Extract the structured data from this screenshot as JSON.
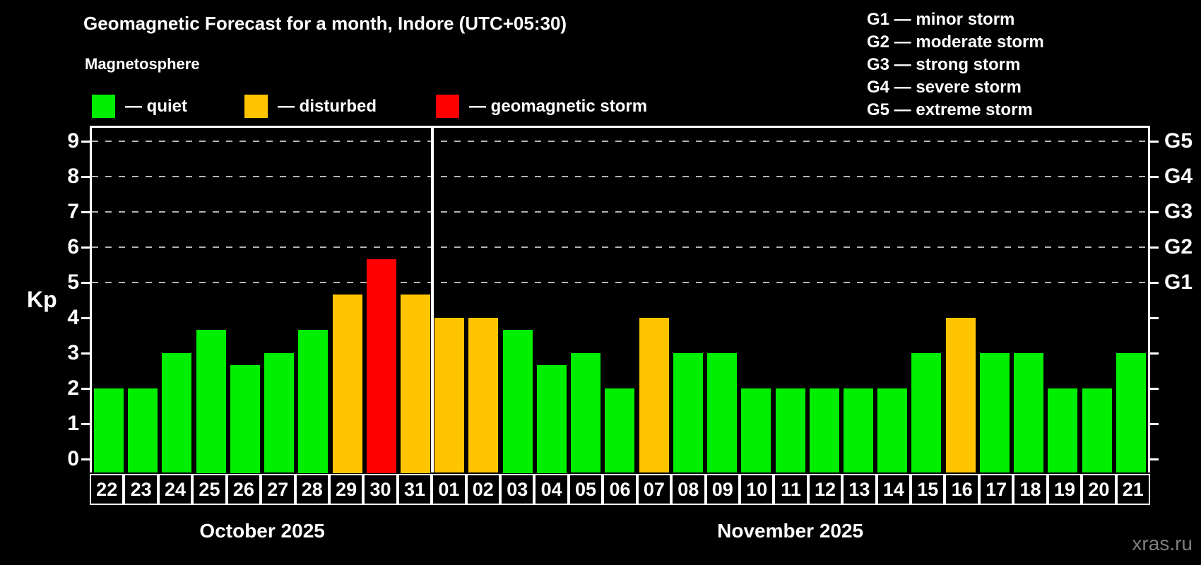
{
  "header": {
    "title": "Geomagnetic Forecast for a month, Indore (UTC+05:30)",
    "subtitle": "Magnetosphere"
  },
  "legend": {
    "items": [
      {
        "key": "quiet",
        "label": "— quiet",
        "color": "#00ee00"
      },
      {
        "key": "disturbed",
        "label": "— disturbed",
        "color": "#ffc400"
      },
      {
        "key": "storm",
        "label": "— geomagnetic storm",
        "color": "#ff0000"
      }
    ]
  },
  "storm_scale_legend": [
    "G1 — minor storm",
    "G2 — moderate storm",
    "G3 — strong storm",
    "G4 — severe storm",
    "G5 — extreme storm"
  ],
  "watermark": "xras.ru",
  "chart_data": {
    "type": "bar",
    "title": "Geomagnetic Forecast for a month, Indore (UTC+05:30)",
    "ylabel": "Kp",
    "ylim": [
      0,
      9.4
    ],
    "yticks": [
      0,
      1,
      2,
      3,
      4,
      5,
      6,
      7,
      8,
      9
    ],
    "grid": "dashed horizontal lines at Kp 5-9 only",
    "gridlines_at_kp": [
      5,
      6,
      7,
      8,
      9
    ],
    "right_axis_labels": [
      {
        "kp": 5,
        "label": "G1"
      },
      {
        "kp": 6,
        "label": "G2"
      },
      {
        "kp": 7,
        "label": "G3"
      },
      {
        "kp": 8,
        "label": "G4"
      },
      {
        "kp": 9,
        "label": "G5"
      }
    ],
    "status_colors": {
      "quiet": "#00ee00",
      "disturbed": "#ffc400",
      "storm": "#ff0000"
    },
    "months": [
      {
        "name": "October 2025",
        "days": 10
      },
      {
        "name": "November 2025",
        "days": 21
      }
    ],
    "bars": [
      {
        "day": "22",
        "kp": 2,
        "status": "quiet"
      },
      {
        "day": "23",
        "kp": 2,
        "status": "quiet"
      },
      {
        "day": "24",
        "kp": 3,
        "status": "quiet"
      },
      {
        "day": "25",
        "kp": 3.67,
        "status": "quiet"
      },
      {
        "day": "26",
        "kp": 2.67,
        "status": "quiet"
      },
      {
        "day": "27",
        "kp": 3,
        "status": "quiet"
      },
      {
        "day": "28",
        "kp": 3.67,
        "status": "quiet"
      },
      {
        "day": "29",
        "kp": 4.67,
        "status": "disturbed"
      },
      {
        "day": "30",
        "kp": 5.67,
        "status": "storm"
      },
      {
        "day": "31",
        "kp": 4.67,
        "status": "disturbed"
      },
      {
        "day": "01",
        "kp": 4,
        "status": "disturbed"
      },
      {
        "day": "02",
        "kp": 4,
        "status": "disturbed"
      },
      {
        "day": "03",
        "kp": 3.67,
        "status": "quiet"
      },
      {
        "day": "04",
        "kp": 2.67,
        "status": "quiet"
      },
      {
        "day": "05",
        "kp": 3,
        "status": "quiet"
      },
      {
        "day": "06",
        "kp": 2,
        "status": "quiet"
      },
      {
        "day": "07",
        "kp": 4,
        "status": "disturbed"
      },
      {
        "day": "08",
        "kp": 3,
        "status": "quiet"
      },
      {
        "day": "09",
        "kp": 3,
        "status": "quiet"
      },
      {
        "day": "10",
        "kp": 2,
        "status": "quiet"
      },
      {
        "day": "11",
        "kp": 2,
        "status": "quiet"
      },
      {
        "day": "12",
        "kp": 2,
        "status": "quiet"
      },
      {
        "day": "13",
        "kp": 2,
        "status": "quiet"
      },
      {
        "day": "14",
        "kp": 2,
        "status": "quiet"
      },
      {
        "day": "15",
        "kp": 3,
        "status": "quiet"
      },
      {
        "day": "16",
        "kp": 4,
        "status": "disturbed"
      },
      {
        "day": "17",
        "kp": 3,
        "status": "quiet"
      },
      {
        "day": "18",
        "kp": 3,
        "status": "quiet"
      },
      {
        "day": "19",
        "kp": 2,
        "status": "quiet"
      },
      {
        "day": "20",
        "kp": 2,
        "status": "quiet"
      },
      {
        "day": "21",
        "kp": 3,
        "status": "quiet"
      }
    ]
  }
}
